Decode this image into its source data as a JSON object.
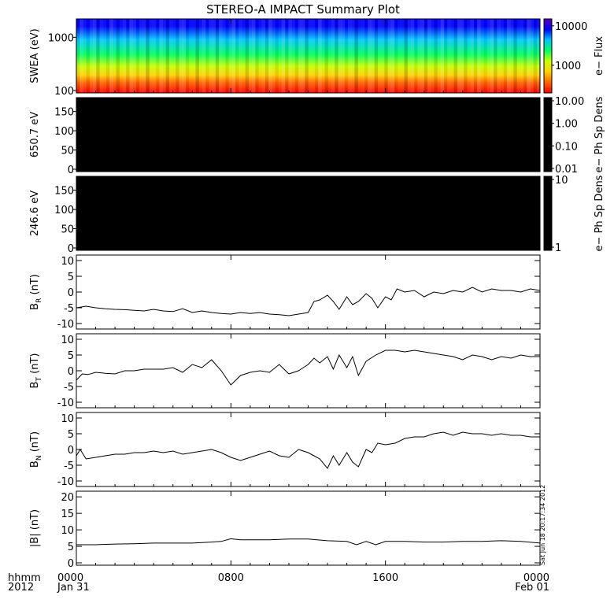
{
  "title": "STEREO-A IMPACT Summary Plot",
  "time_axis": {
    "label_line1": "hhmm",
    "label_line2": "2012",
    "ticks": [
      {
        "hhmm": "0000",
        "date": "Jan 31",
        "hour": 0
      },
      {
        "hhmm": "0800",
        "date": "",
        "hour": 8
      },
      {
        "hhmm": "1600",
        "date": "",
        "hour": 16
      },
      {
        "hhmm": "0000",
        "date": "Feb 01",
        "hour": 24
      }
    ]
  },
  "timestamp": "Sat Jun 18 20:17:34 2012",
  "colors": {
    "frame": "#000000",
    "black_panel": "#000000",
    "line": "#000000"
  },
  "chart_data": [
    {
      "type": "heatmap",
      "ylabel": "SWEA (eV)",
      "ylim": [
        100,
        2000
      ],
      "yscale": "log",
      "yticks": [
        "100",
        "1000"
      ],
      "xlim": [
        0,
        24
      ],
      "colorbar": {
        "label": "e− Flux",
        "ticks": [
          "1000",
          "10000"
        ],
        "range": [
          200,
          15000
        ],
        "scale": "log",
        "colormap": [
          "#5a00b4",
          "#0000ff",
          "#00c8ff",
          "#00ff60",
          "#c8ff00",
          "#ffd200",
          "#ff6400",
          "#ff0000"
        ]
      }
    },
    {
      "type": "heatmap",
      "ylabel": "650.7 eV",
      "ylim": [
        0,
        180
      ],
      "yticks": [
        "0",
        "50",
        "100",
        "150"
      ],
      "xlim": [
        0,
        24
      ],
      "fill": "#000000",
      "colorbar": {
        "label": "e− Ph Sp Dens",
        "ticks": [
          "0.01",
          "0.10",
          "1.00",
          "10.00"
        ],
        "fill": "#000000"
      }
    },
    {
      "type": "heatmap",
      "ylabel": "246.6 eV",
      "ylim": [
        0,
        180
      ],
      "yticks": [
        "0",
        "50",
        "100",
        "150"
      ],
      "xlim": [
        0,
        24
      ],
      "fill": "#000000",
      "colorbar": {
        "label": "e− Ph Sp Dens",
        "ticks": [
          "1",
          "10"
        ],
        "fill": "#000000"
      }
    },
    {
      "type": "line",
      "ylabel": "B",
      "ylabel_sub": "R",
      "ylabel_unit": "(nT)",
      "ylim": [
        -11,
        11
      ],
      "yticks": [
        "-10",
        "-5",
        "0",
        "5",
        "10"
      ],
      "x": [
        0,
        0.5,
        1,
        1.5,
        2,
        2.5,
        3,
        3.5,
        4,
        4.5,
        5,
        5.5,
        6,
        6.5,
        7,
        7.5,
        8,
        8.5,
        9,
        9.5,
        10,
        10.5,
        11,
        11.5,
        12,
        12.3,
        12.6,
        13,
        13.3,
        13.6,
        14,
        14.3,
        14.6,
        15,
        15.3,
        15.6,
        16,
        16.3,
        16.6,
        17,
        17.5,
        18,
        18.5,
        19,
        19.5,
        20,
        20.5,
        21,
        21.5,
        22,
        22.5,
        23,
        23.5,
        24
      ],
      "y": [
        -5,
        -4.5,
        -5,
        -5.3,
        -5.5,
        -5.6,
        -5.8,
        -6,
        -5.5,
        -6,
        -6.2,
        -5.3,
        -6.5,
        -6,
        -6.5,
        -6.8,
        -7,
        -6.5,
        -6.8,
        -6.5,
        -7,
        -7.2,
        -7.5,
        -7,
        -6.5,
        -3,
        -2.5,
        -1,
        -3,
        -5.5,
        -1.5,
        -4,
        -3,
        -0.5,
        -2,
        -5,
        -1.5,
        -2.5,
        1,
        0,
        0.5,
        -1.5,
        0,
        -0.5,
        0.5,
        0,
        1.5,
        0,
        1,
        0.5,
        0.5,
        0,
        1,
        0.5
      ]
    },
    {
      "type": "line",
      "ylabel": "B",
      "ylabel_sub": "T",
      "ylabel_unit": "(nT)",
      "ylim": [
        -11,
        11
      ],
      "yticks": [
        "-10",
        "-5",
        "0",
        "5",
        "10"
      ],
      "x": [
        0,
        0.3,
        0.6,
        1,
        1.5,
        2,
        2.5,
        3,
        3.5,
        4,
        4.5,
        5,
        5.5,
        6,
        6.5,
        7,
        7.5,
        8,
        8.5,
        9,
        9.5,
        10,
        10.5,
        11,
        11.5,
        12,
        12.3,
        12.6,
        13,
        13.3,
        13.6,
        14,
        14.3,
        14.6,
        15,
        15.5,
        16,
        16.5,
        17,
        17.5,
        18,
        18.5,
        19,
        19.5,
        20,
        20.5,
        21,
        21.5,
        22,
        22.5,
        23,
        23.5,
        24
      ],
      "y": [
        -3,
        -1,
        -1.2,
        -0.5,
        -0.8,
        -1,
        0,
        0,
        0.5,
        0.5,
        0.5,
        1,
        -0.5,
        2,
        1,
        3.5,
        0,
        -4.5,
        -1.5,
        -0.5,
        0,
        -0.5,
        2,
        -1,
        0,
        2,
        4,
        2.5,
        4.5,
        0.5,
        5,
        1,
        4.5,
        -1.5,
        3,
        5,
        6.5,
        6.5,
        6,
        6.5,
        6,
        5.5,
        5,
        4.5,
        3.5,
        5,
        4.5,
        3.5,
        4.5,
        4,
        5,
        4.5,
        4.5
      ]
    },
    {
      "type": "line",
      "ylabel": "B",
      "ylabel_sub": "N",
      "ylabel_unit": "(nT)",
      "ylim": [
        -11,
        11
      ],
      "yticks": [
        "-10",
        "-5",
        "0",
        "5",
        "10"
      ],
      "x": [
        0,
        0.2,
        0.5,
        1,
        1.5,
        2,
        2.5,
        3,
        3.5,
        4,
        4.5,
        5,
        5.5,
        6,
        6.5,
        7,
        7.5,
        8,
        8.5,
        9,
        9.5,
        10,
        10.5,
        11,
        11.5,
        12,
        12.3,
        12.6,
        13,
        13.3,
        13.6,
        14,
        14.3,
        14.6,
        15,
        15.3,
        15.6,
        16,
        16.5,
        17,
        17.5,
        18,
        18.5,
        19,
        19.5,
        20,
        20.5,
        21,
        21.5,
        22,
        22.5,
        23,
        23.5,
        24
      ],
      "y": [
        -2,
        0,
        -3,
        -2.5,
        -2,
        -1.5,
        -1.5,
        -1,
        -1,
        -0.5,
        -1,
        -0.5,
        -1.5,
        -1,
        -0.5,
        0,
        -1,
        -2.5,
        -3.5,
        -2.5,
        -1.5,
        -0.5,
        -2,
        -2.5,
        0,
        -1,
        -2,
        -3,
        -6,
        -2,
        -5,
        -1,
        -4,
        -5.5,
        0,
        -1,
        2,
        1.5,
        2,
        3.5,
        4,
        4,
        5,
        5.5,
        4.5,
        5.5,
        5,
        5,
        4.5,
        5,
        4.5,
        4.5,
        4,
        4
      ]
    },
    {
      "type": "line",
      "ylabel": "|B|",
      "ylabel_unit": "(nT)",
      "ylim": [
        0,
        21
      ],
      "yticks": [
        "0",
        "5",
        "10",
        "15",
        "20"
      ],
      "x": [
        0,
        1,
        2,
        3,
        4,
        5,
        6,
        7,
        7.5,
        8,
        8.5,
        9,
        10,
        11,
        12,
        13,
        14,
        14.5,
        15,
        15.5,
        16,
        17,
        18,
        19,
        20,
        21,
        22,
        23,
        24
      ],
      "y": [
        5.5,
        5.5,
        5.7,
        5.8,
        6,
        6,
        6,
        6.3,
        6.5,
        7.3,
        7,
        7,
        7,
        7.2,
        7.2,
        6.7,
        6.5,
        5.5,
        6.5,
        5.5,
        6.5,
        6.5,
        6.3,
        6.3,
        6.5,
        6.5,
        6.7,
        6.5,
        6
      ]
    }
  ]
}
